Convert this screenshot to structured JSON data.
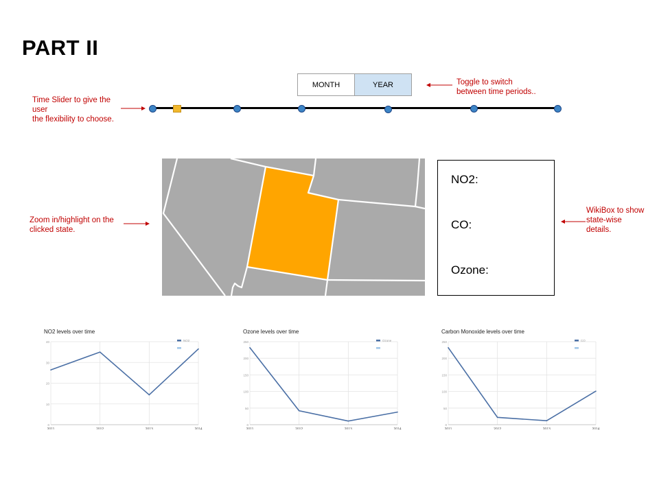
{
  "page": {
    "title": "PART II"
  },
  "toggle": {
    "month_label": "MONTH",
    "year_label": "YEAR",
    "selected": "YEAR"
  },
  "annotations": {
    "toggle_note": [
      "Toggle to switch",
      "between time periods.."
    ],
    "slider_note": [
      "Time Slider to give the",
      "user",
      "the flexibility to choose."
    ],
    "map_note": [
      "Zoom in/highlight on the",
      "clicked state."
    ],
    "wiki_note": [
      "WikiBox to show",
      "state-wise",
      "details."
    ]
  },
  "colors": {
    "annotation": "#c00000",
    "slider_dot": "#3d85c6",
    "slider_thumb": "#f1b82d",
    "toggle_selected": "#cfe2f3",
    "highlight_state": "#ffa500",
    "map_state": "#aaaaaa",
    "chart_line": "#4a6fa5"
  },
  "slider": {
    "stops": 7,
    "selected_index": 1
  },
  "wikibox": {
    "fields": [
      "NO2:",
      "CO:",
      "Ozone:"
    ]
  },
  "chart_data": [
    {
      "type": "line",
      "title": "NO2 levels over time",
      "categories": [
        "2011",
        "2012",
        "2013",
        "2014"
      ],
      "series": [
        {
          "name": "NO2",
          "values": [
            26.4,
            35.0,
            14.4,
            36.5
          ]
        }
      ],
      "ylim": [
        0,
        40
      ],
      "yticks": [
        "0",
        "10",
        "20",
        "30",
        "40"
      ],
      "legend": "top-right",
      "grid": true
    },
    {
      "type": "line",
      "title": "Ozone levels over time",
      "categories": [
        "2011",
        "2012",
        "2013",
        "2014"
      ],
      "series": [
        {
          "name": "Ozone",
          "values": [
            232,
            42,
            11,
            38
          ]
        }
      ],
      "ylim": [
        0,
        250
      ],
      "yticks": [
        "0",
        "50",
        "100",
        "150",
        "200",
        "250"
      ],
      "legend": "top-right",
      "grid": true
    },
    {
      "type": "line",
      "title": "Carbon Monoxide levels over time",
      "categories": [
        "2011",
        "2012",
        "2013",
        "2014"
      ],
      "series": [
        {
          "name": "CO",
          "values": [
            232,
            22,
            12,
            101
          ]
        }
      ],
      "ylim": [
        0,
        250
      ],
      "yticks": [
        "0",
        "50",
        "100",
        "150",
        "200",
        "250"
      ],
      "legend": "top-right",
      "grid": true
    }
  ]
}
